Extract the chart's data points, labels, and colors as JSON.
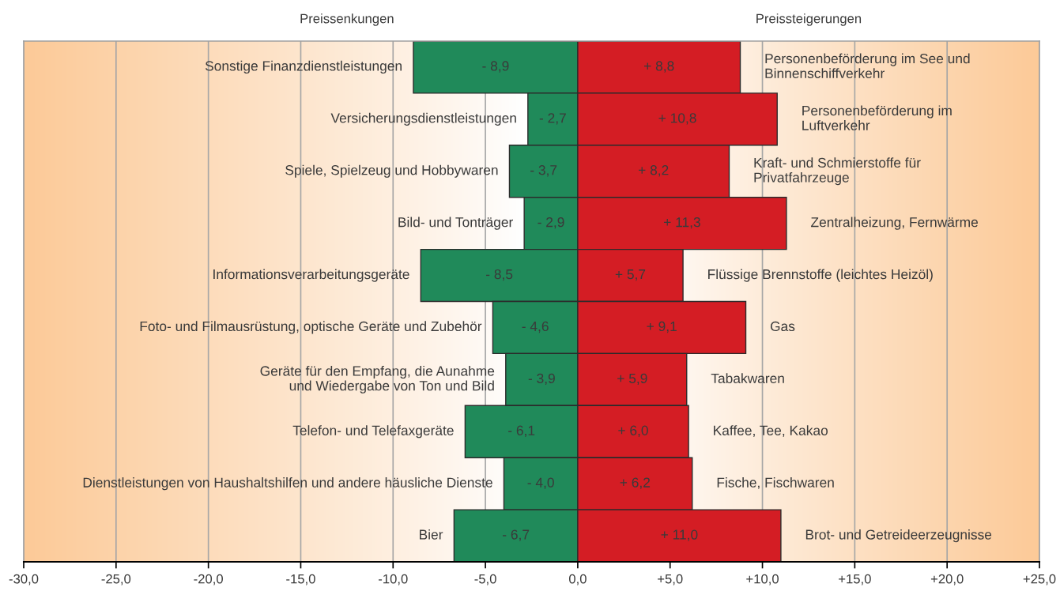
{
  "chart_data": {
    "type": "bar",
    "orientation": "horizontal",
    "stacked": true,
    "categories": [
      "Sonstige Finanzdienstleistungen",
      "Versicherungsdienstleistungen",
      "Spiele, Spielzeug und Hobbywaren",
      "Bild- und Tonträger",
      "Informationsverarbeitungsgeräte",
      "Foto- und Filmausrüstung, optische Geräte und Zubehör",
      "Geräte für den Empfang, die Aunahme\nund Wiedergabe von Ton und Bild",
      "Telefon- und Telefaxgeräte",
      "Dienstleistungen von Haushaltshilfen und andere häusliche Dienste",
      "Bier"
    ],
    "y2_categories": [
      "Personenbeförderung im See und\nBinnenschiffverkehr",
      "Personenbeförderung im\nLuftverkehr",
      "Kraft- und Schmierstoffe für\nPrivatfahrzeuge",
      "Zentralheizung, Fernwärme",
      "Flüssige Brennstoffe (leichtes Heizöl)",
      "Gas",
      "Tabakwaren",
      "Kaffee, Tee, Kakao",
      "Fische, Fischwaren",
      "Brot- und Getreideerzeugnisse"
    ],
    "series": [
      {
        "name": "Preissenkungen",
        "color": "#208a5a",
        "values": [
          -8.9,
          -2.7,
          -3.7,
          -2.9,
          -8.5,
          -4.6,
          -3.9,
          -6.1,
          -4.0,
          -6.7
        ],
        "value_labels": [
          "- 8,9",
          "- 2,7",
          "- 3,7",
          "- 2,9",
          "- 8,5",
          "- 4,6",
          "- 3,9",
          "- 6,1",
          "- 4,0",
          "- 6,7"
        ]
      },
      {
        "name": "Preissteigerungen",
        "color": "#d41d24",
        "values": [
          8.8,
          10.8,
          8.2,
          11.3,
          5.7,
          9.1,
          5.9,
          6.0,
          6.2,
          11.0
        ],
        "value_labels": [
          "+ 8,8",
          "+ 10,8",
          "+ 8,2",
          "+ 11,3",
          "+ 5,7",
          "+ 9,1",
          "+ 5,9",
          "+ 6,0",
          "+ 6,2",
          "+ 11,0"
        ]
      }
    ],
    "xlim": [
      -30,
      25
    ],
    "xticks": [
      {
        "value": -30,
        "label": "-30,0"
      },
      {
        "value": -25,
        "label": "-25,0"
      },
      {
        "value": -20,
        "label": "-20,0"
      },
      {
        "value": -15,
        "label": "-15,0"
      },
      {
        "value": -10,
        "label": "-10,0"
      },
      {
        "value": -5,
        "label": "-5,0"
      },
      {
        "value": 0,
        "label": "0,0"
      },
      {
        "value": 5,
        "label": "+5,0"
      },
      {
        "value": 10,
        "label": "+10,0"
      },
      {
        "value": 15,
        "label": "+15,0"
      },
      {
        "value": 20,
        "label": "+20,0"
      },
      {
        "value": 25,
        "label": "+25,0"
      }
    ],
    "grid": "x"
  }
}
